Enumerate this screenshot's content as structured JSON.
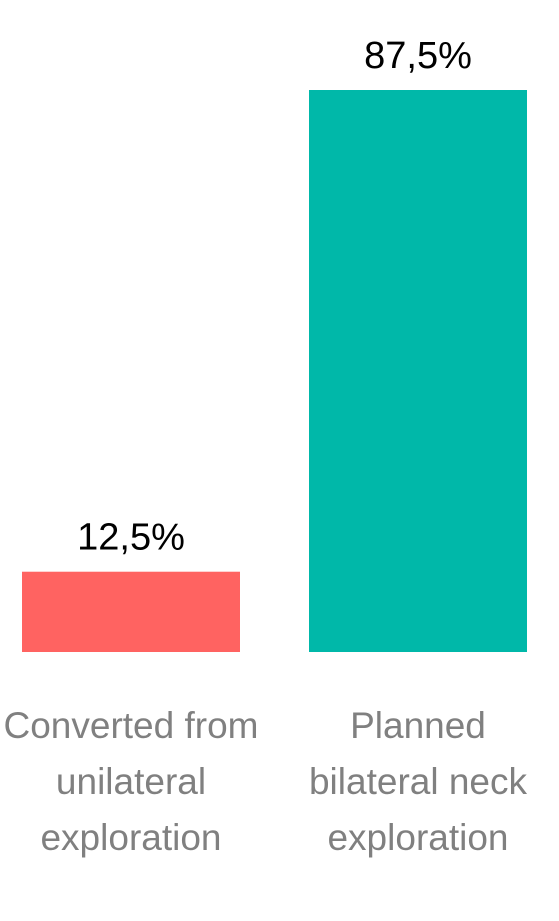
{
  "chart_data": {
    "type": "bar",
    "categories": [
      "Converted from unilateral exploration",
      "Planned bilateral neck exploration"
    ],
    "values": [
      12.5,
      87.5
    ],
    "value_labels": [
      "12,5%",
      "87,5%"
    ],
    "colors": [
      "#ff6361",
      "#00b8a9"
    ]
  }
}
